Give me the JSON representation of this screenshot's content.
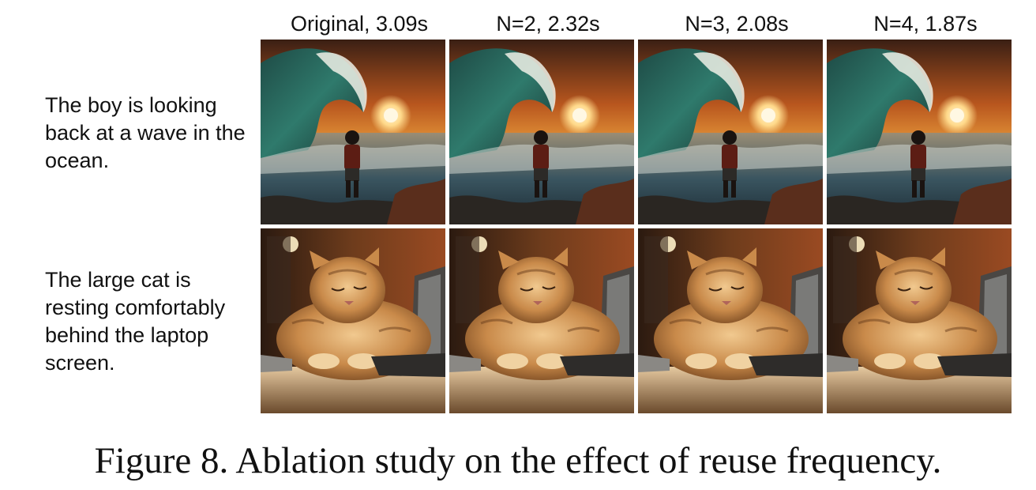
{
  "columns": [
    {
      "label": "Original, 3.09s"
    },
    {
      "label": "N=2, 2.32s"
    },
    {
      "label": "N=3, 2.08s"
    },
    {
      "label": "N=4, 1.87s"
    }
  ],
  "rows": [
    {
      "prompt": "The boy is looking back at a wave in the ocean.",
      "subject": "boy-wave"
    },
    {
      "prompt": "The large cat is resting comfortably behind the laptop screen.",
      "subject": "cat-laptop"
    }
  ],
  "caption": "Figure 8. Ablation study on the effect of reuse frequency."
}
